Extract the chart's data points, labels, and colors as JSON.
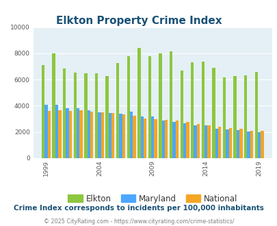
{
  "title": "Elkton Property Crime Index",
  "title_color": "#1a5276",
  "subtitle": "Crime Index corresponds to incidents per 100,000 inhabitants",
  "subtitle_color": "#1a5276",
  "footer": "© 2025 CityRating.com - https://www.cityrating.com/crime-statistics/",
  "footer_color": "#808080",
  "years": [
    1999,
    2000,
    2001,
    2002,
    2003,
    2004,
    2005,
    2006,
    2007,
    2008,
    2009,
    2010,
    2011,
    2012,
    2013,
    2014,
    2015,
    2016,
    2017,
    2018,
    2019
  ],
  "elkton": [
    7100,
    8000,
    6850,
    6550,
    6480,
    6480,
    6280,
    7280,
    7800,
    8430,
    7760,
    7980,
    8170,
    6680,
    7340,
    7380,
    6920,
    6150,
    6280,
    6310,
    6560
  ],
  "maryland": [
    4080,
    4080,
    3820,
    3800,
    3650,
    3520,
    3460,
    3380,
    3560,
    3200,
    3170,
    2880,
    2770,
    2640,
    2500,
    2510,
    2260,
    2220,
    2120,
    2030,
    2000
  ],
  "national": [
    3600,
    3680,
    3620,
    3650,
    3530,
    3490,
    3430,
    3330,
    3230,
    3050,
    2990,
    2920,
    2850,
    2760,
    2590,
    2490,
    2390,
    2320,
    2250,
    2110,
    2100
  ],
  "elkton_color": "#8dc63f",
  "maryland_color": "#4da6ff",
  "national_color": "#f5a623",
  "plot_bg_color": "#e4f0f5",
  "ylim": [
    0,
    10000
  ],
  "yticks": [
    0,
    2000,
    4000,
    6000,
    8000,
    10000
  ],
  "xtick_years": [
    1999,
    2004,
    2009,
    2014,
    2019
  ],
  "legend_labels": [
    "Elkton",
    "Maryland",
    "National"
  ],
  "bar_width": 0.28
}
